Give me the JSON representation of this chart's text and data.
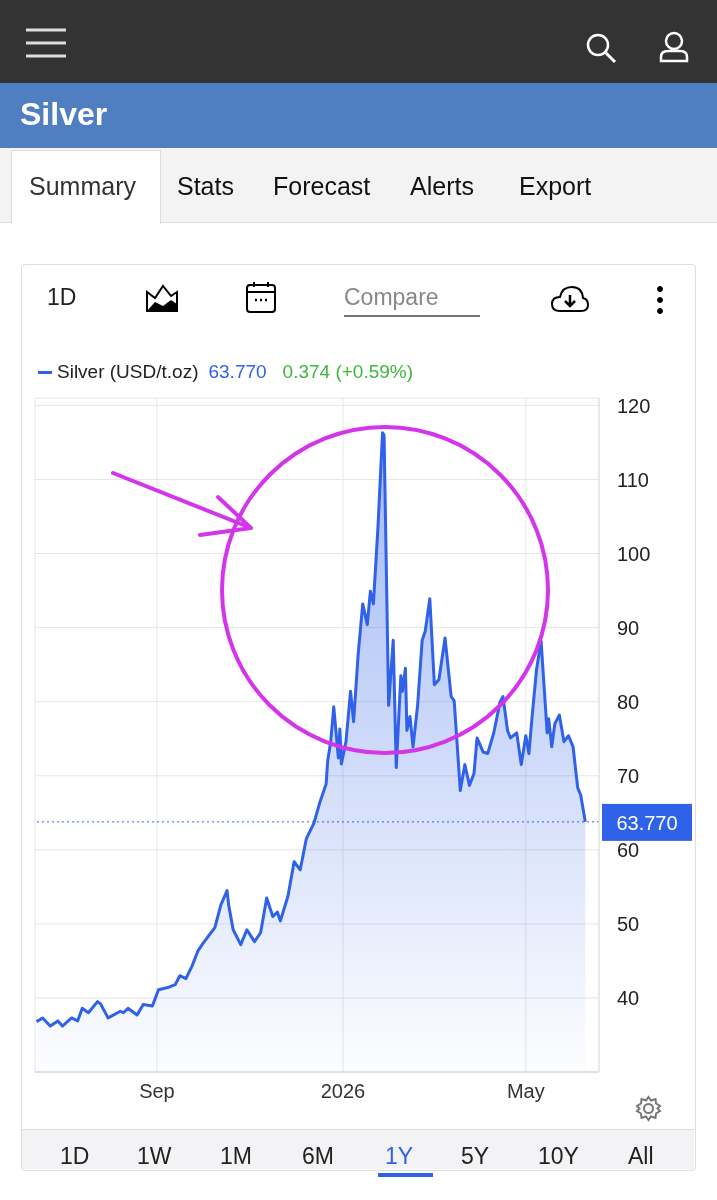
{
  "chart_data": {
    "type": "area",
    "title": "Silver",
    "legend": "top left",
    "grid": true,
    "annotations": [
      "Summary",
      "Stats",
      "Forecast",
      "Alerts",
      "Export",
      "1D",
      "Compare",
      "63.770",
      "0.374 (+0.59%)",
      "1D",
      "1W",
      "1M",
      "6M",
      "1Y",
      "5Y",
      "10Y",
      "All"
    ],
    "xlim": [
      "2025-06-13",
      "2026-06-18"
    ],
    "xticks": [
      {
        "value": "2025-09-01",
        "label": "Sep"
      },
      {
        "value": "2026-01-01",
        "label": "2026"
      },
      {
        "value": "2026-05-01",
        "label": "May"
      }
    ],
    "ylim": [
      30,
      121
    ],
    "yticks": [
      40,
      50,
      60,
      70,
      80,
      90,
      100,
      110,
      120
    ],
    "ref_lines": [
      {
        "axis": "y",
        "value": 63.77,
        "label": "63.770",
        "color": "#2f62e8",
        "line_style": "dotted"
      }
    ],
    "x": [
      "2025-06-14",
      "2025-06-18",
      "2025-06-23",
      "2025-06-28",
      "2025-07-01",
      "2025-07-07",
      "2025-07-11",
      "2025-07-14",
      "2025-07-18",
      "2025-07-24",
      "2025-07-26",
      "2025-07-31",
      "2025-08-08",
      "2025-08-10",
      "2025-08-13",
      "2025-08-19",
      "2025-08-23",
      "2025-08-29",
      "2025-09-02",
      "2025-09-08",
      "2025-09-13",
      "2025-09-16",
      "2025-09-20",
      "2025-09-24",
      "2025-09-28",
      "2025-10-01",
      "2025-10-05",
      "2025-10-09",
      "2025-10-13",
      "2025-10-17",
      "2025-10-18",
      "2025-10-21",
      "2025-10-26",
      "2025-10-30",
      "2025-11-04",
      "2025-11-08",
      "2025-11-12",
      "2025-11-16",
      "2025-11-19",
      "2025-11-21",
      "2025-11-26",
      "2025-11-30",
      "2025-12-04",
      "2025-12-08",
      "2025-12-13",
      "2025-12-17",
      "2025-12-21",
      "2025-12-22",
      "2025-12-24",
      "2025-12-26",
      "2025-12-29",
      "2025-12-30",
      "2025-12-31",
      "2026-01-03",
      "2026-01-06",
      "2026-01-08",
      "2026-01-11",
      "2026-01-14",
      "2026-01-17",
      "2026-01-19",
      "2026-01-21",
      "2026-01-24",
      "2026-01-27",
      "2026-01-28",
      "2026-01-31",
      "2026-02-03",
      "2026-02-05",
      "2026-02-08",
      "2026-02-09",
      "2026-02-11",
      "2026-02-12",
      "2026-02-14",
      "2026-02-16",
      "2026-02-19",
      "2026-02-22",
      "2026-02-24",
      "2026-02-27",
      "2026-03-02",
      "2026-03-05",
      "2026-03-09",
      "2026-03-13",
      "2026-03-15",
      "2026-03-19",
      "2026-03-22",
      "2026-03-25",
      "2026-03-28",
      "2026-03-30",
      "2026-04-03",
      "2026-04-06",
      "2026-04-10",
      "2026-04-14",
      "2026-04-16",
      "2026-04-19",
      "2026-04-21",
      "2026-04-25",
      "2026-04-28",
      "2026-05-01",
      "2026-05-03",
      "2026-05-05",
      "2026-05-08",
      "2026-05-11",
      "2026-05-15",
      "2026-05-16",
      "2026-05-18",
      "2026-05-20",
      "2026-05-23",
      "2026-05-26",
      "2026-05-29",
      "2026-06-01",
      "2026-06-04",
      "2026-06-06",
      "2026-06-09"
    ],
    "series": [
      {
        "name": "Silver (USD/t.oz)",
        "color": "#2f62e8",
        "values": [
          36.8,
          37.3,
          36.2,
          36.9,
          36.2,
          37.3,
          36.9,
          38.6,
          38.0,
          39.5,
          39.2,
          37.3,
          38.2,
          38.0,
          38.6,
          37.7,
          39.1,
          38.9,
          41.1,
          41.4,
          41.8,
          43.0,
          42.6,
          44.3,
          46.4,
          47.3,
          48.4,
          49.5,
          52.6,
          54.5,
          52.6,
          49.2,
          47.2,
          49.2,
          47.6,
          48.8,
          53.5,
          51.0,
          51.6,
          50.4,
          53.8,
          58.4,
          57.3,
          61.5,
          63.6,
          66.5,
          68.9,
          72.0,
          74.6,
          79.3,
          72.4,
          76.3,
          71.6,
          74.6,
          81.4,
          77.3,
          86.4,
          93.2,
          90.4,
          94.9,
          93.2,
          103.6,
          116.3,
          116.0,
          79.5,
          88.3,
          71.1,
          83.5,
          81.4,
          84.5,
          76.1,
          78.0,
          73.9,
          79.5,
          88.3,
          89.5,
          93.9,
          82.3,
          83.0,
          88.6,
          80.7,
          80.1,
          68.0,
          71.5,
          68.7,
          70.3,
          75.1,
          73.2,
          73.0,
          75.8,
          79.9,
          80.7,
          76.1,
          75.1,
          75.8,
          71.5,
          75.4,
          73.0,
          77.7,
          84.3,
          88.2,
          75.8,
          77.7,
          73.9,
          77.0,
          78.2,
          74.6,
          75.4,
          73.9,
          68.4,
          67.4,
          63.8
        ]
      }
    ]
  }
}
